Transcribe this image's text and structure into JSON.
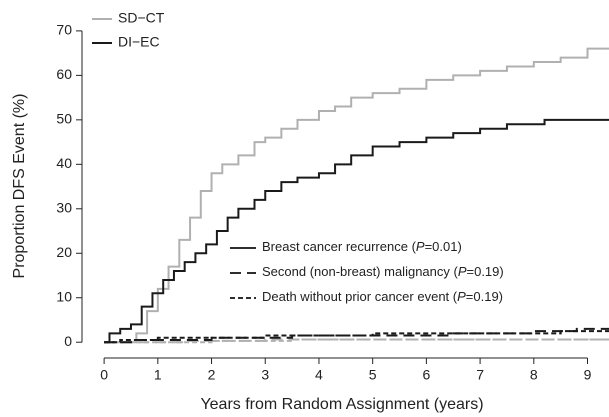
{
  "chart_data": {
    "type": "step",
    "x_label": "Years from Random Assignment (years)",
    "y_label": "Proportion DFS Event (%)",
    "xlim": [
      -0.3,
      9.4
    ],
    "ylim": [
      -2.2,
      72
    ],
    "xticks": [
      0,
      1,
      2,
      3,
      4,
      5,
      6,
      7,
      8,
      9
    ],
    "yticks": [
      0,
      10,
      20,
      30,
      40,
      50,
      60,
      70
    ],
    "event_types": [
      {
        "before": "Breast cancer recurrence (",
        "p": "P",
        "after": "=0.01)",
        "dash": "none"
      },
      {
        "before": "Second (non-breast) malignancy (",
        "p": "P",
        "after": "=0.19)",
        "dash": "11,6"
      },
      {
        "before": "Death without prior cancer event (",
        "p": "P",
        "after": "=0.19)",
        "dash": "5,3"
      }
    ],
    "groups": [
      {
        "name": "SD−CT",
        "color": "#b0b0b0",
        "curves": [
          {
            "x": [
              0,
              0.4,
              0.6,
              0.8,
              1.0,
              1.2,
              1.4,
              1.6,
              1.8,
              2.0,
              2.2,
              2.5,
              2.8,
              3.0,
              3.3,
              3.6,
              4.0,
              4.3,
              4.6,
              5.0,
              5.5,
              6.0,
              6.5,
              7.0,
              7.5,
              8.0,
              8.5,
              9.0,
              9.4
            ],
            "values": [
              0,
              0,
              2,
              7,
              12,
              17,
              23,
              28,
              34,
              38,
              40,
              42,
              45,
              46,
              48,
              50,
              52,
              53,
              55,
              56,
              57,
              59,
              60,
              61,
              62,
              63,
              64,
              66,
              66
            ]
          },
          {
            "x": [
              0,
              1.5,
              3.0,
              9.4
            ],
            "values": [
              0,
              0.3,
              0.6,
              0.6
            ]
          },
          {
            "x": [
              0,
              2.0,
              3.5,
              9.4
            ],
            "values": [
              0,
              0.3,
              0.6,
              0.6
            ]
          }
        ]
      },
      {
        "name": "DI−EC",
        "color": "#1a1a1a",
        "curves": [
          {
            "x": [
              0,
              0.1,
              0.3,
              0.5,
              0.7,
              0.9,
              1.1,
              1.3,
              1.5,
              1.7,
              1.9,
              2.1,
              2.3,
              2.5,
              2.8,
              3.0,
              3.3,
              3.6,
              4.0,
              4.3,
              4.6,
              5.0,
              5.5,
              6.0,
              6.5,
              7.0,
              7.5,
              8.2,
              9.4
            ],
            "values": [
              0,
              2,
              3,
              4,
              8,
              11,
              14,
              16,
              18,
              20,
              22,
              25,
              28,
              30,
              32,
              34,
              36,
              37,
              38,
              40,
              42,
              44,
              45,
              46,
              47,
              48,
              49,
              50,
              50
            ]
          },
          {
            "x": [
              0,
              0.5,
              2.0,
              3.5,
              6.5,
              8.0,
              8.8,
              9.4
            ],
            "values": [
              0,
              0.5,
              1,
              1.5,
              2,
              2.5,
              3,
              3
            ]
          },
          {
            "x": [
              0,
              0.3,
              1.0,
              3.0,
              5.0,
              8.5,
              9.4
            ],
            "values": [
              0,
              0.5,
              1,
              1.5,
              2,
              2.5,
              2.5
            ]
          }
        ]
      }
    ]
  }
}
